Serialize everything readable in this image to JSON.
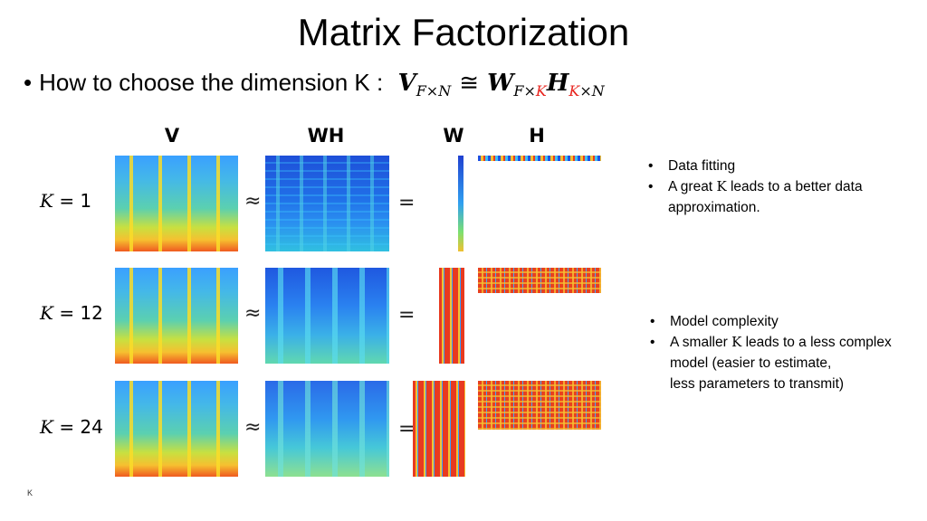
{
  "title": "Matrix Factorization",
  "bullet": {
    "marker": "•",
    "text": "How to choose the dimension K :",
    "formula": {
      "V": "V",
      "V_sub": "F×N",
      "approx": "≅",
      "W": "W",
      "W_sub_a": "F×",
      "W_sub_k": "K",
      "H": "H",
      "H_sub_k": "K",
      "H_sub_b": "×N",
      "accent_color": "#e8251f"
    }
  },
  "figure": {
    "columns": {
      "v": "V",
      "wh": "WH",
      "w": "W",
      "h": "H"
    },
    "rows": [
      {
        "k_var": "K",
        "k_eq": "= 1",
        "approx": "≈",
        "equals": "="
      },
      {
        "k_var": "K",
        "k_eq": "= 12",
        "approx": "≈",
        "equals": "="
      },
      {
        "k_var": "K",
        "k_eq": "= 24",
        "approx": "≈",
        "equals": "="
      }
    ]
  },
  "notes_top": [
    {
      "marker": "•",
      "text": "Data fitting"
    },
    {
      "marker": "•",
      "pre": "A great ",
      "k": "K",
      "post": " leads to a better data"
    },
    {
      "cont": "approximation."
    }
  ],
  "notes_bottom": [
    {
      "marker": "•",
      "text": "Model complexity"
    },
    {
      "marker": "•",
      "pre": "A smaller ",
      "k": "K",
      "post": " leads to a less complex"
    },
    {
      "cont": "model (easier to estimate,"
    },
    {
      "cont": "less parameters to transmit)"
    }
  ],
  "footer": "K"
}
